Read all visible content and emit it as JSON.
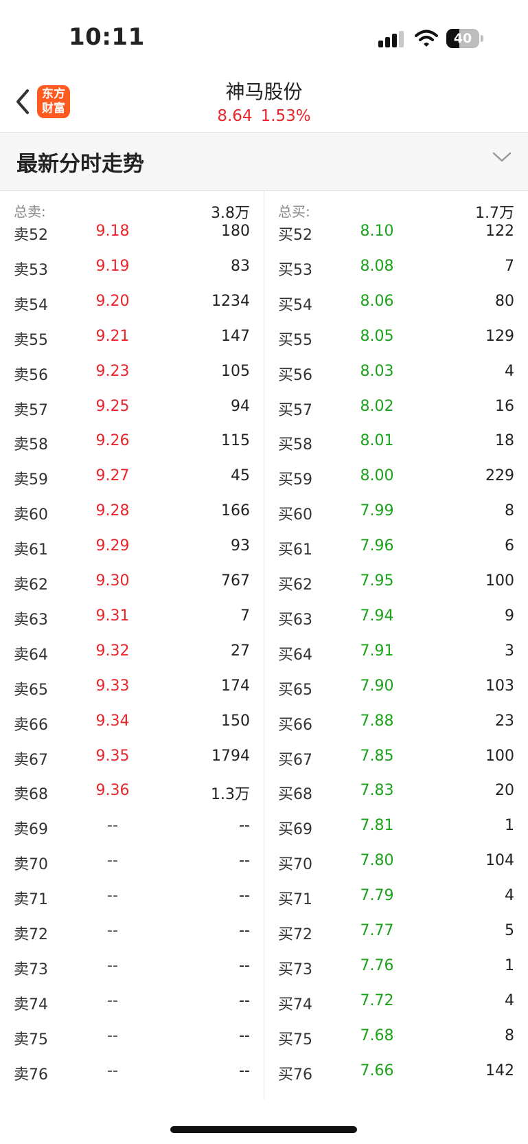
{
  "status_bar": {
    "time": "10:11",
    "battery": "40",
    "battery_level": 0.4
  },
  "header": {
    "logo_line1": "东方",
    "logo_line2": "财富",
    "stock_name": "神马股份",
    "price": "8.64",
    "change_pct": "1.53%"
  },
  "section": {
    "title": "最新分时走势"
  },
  "sell": {
    "total_label": "总卖:",
    "total_value": "3.8万",
    "levels": [
      {
        "label": "卖52",
        "price": "9.18",
        "volume": "180"
      },
      {
        "label": "卖53",
        "price": "9.19",
        "volume": "83"
      },
      {
        "label": "卖54",
        "price": "9.20",
        "volume": "1234"
      },
      {
        "label": "卖55",
        "price": "9.21",
        "volume": "147"
      },
      {
        "label": "卖56",
        "price": "9.23",
        "volume": "105"
      },
      {
        "label": "卖57",
        "price": "9.25",
        "volume": "94"
      },
      {
        "label": "卖58",
        "price": "9.26",
        "volume": "115"
      },
      {
        "label": "卖59",
        "price": "9.27",
        "volume": "45"
      },
      {
        "label": "卖60",
        "price": "9.28",
        "volume": "166"
      },
      {
        "label": "卖61",
        "price": "9.29",
        "volume": "93"
      },
      {
        "label": "卖62",
        "price": "9.30",
        "volume": "767"
      },
      {
        "label": "卖63",
        "price": "9.31",
        "volume": "7"
      },
      {
        "label": "卖64",
        "price": "9.32",
        "volume": "27"
      },
      {
        "label": "卖65",
        "price": "9.33",
        "volume": "174"
      },
      {
        "label": "卖66",
        "price": "9.34",
        "volume": "150"
      },
      {
        "label": "卖67",
        "price": "9.35",
        "volume": "1794"
      },
      {
        "label": "卖68",
        "price": "9.36",
        "volume": "1.3万"
      },
      {
        "label": "卖69",
        "price": "--",
        "volume": "--"
      },
      {
        "label": "卖70",
        "price": "--",
        "volume": "--"
      },
      {
        "label": "卖71",
        "price": "--",
        "volume": "--"
      },
      {
        "label": "卖72",
        "price": "--",
        "volume": "--"
      },
      {
        "label": "卖73",
        "price": "--",
        "volume": "--"
      },
      {
        "label": "卖74",
        "price": "--",
        "volume": "--"
      },
      {
        "label": "卖75",
        "price": "--",
        "volume": "--"
      },
      {
        "label": "卖76",
        "price": "--",
        "volume": "--"
      }
    ]
  },
  "buy": {
    "total_label": "总买:",
    "total_value": "1.7万",
    "levels": [
      {
        "label": "买52",
        "price": "8.10",
        "volume": "122"
      },
      {
        "label": "买53",
        "price": "8.08",
        "volume": "7"
      },
      {
        "label": "买54",
        "price": "8.06",
        "volume": "80"
      },
      {
        "label": "买55",
        "price": "8.05",
        "volume": "129"
      },
      {
        "label": "买56",
        "price": "8.03",
        "volume": "4"
      },
      {
        "label": "买57",
        "price": "8.02",
        "volume": "16"
      },
      {
        "label": "买58",
        "price": "8.01",
        "volume": "18"
      },
      {
        "label": "买59",
        "price": "8.00",
        "volume": "229"
      },
      {
        "label": "买60",
        "price": "7.99",
        "volume": "8"
      },
      {
        "label": "买61",
        "price": "7.96",
        "volume": "6"
      },
      {
        "label": "买62",
        "price": "7.95",
        "volume": "100"
      },
      {
        "label": "买63",
        "price": "7.94",
        "volume": "9"
      },
      {
        "label": "买64",
        "price": "7.91",
        "volume": "3"
      },
      {
        "label": "买65",
        "price": "7.90",
        "volume": "103"
      },
      {
        "label": "买66",
        "price": "7.88",
        "volume": "23"
      },
      {
        "label": "买67",
        "price": "7.85",
        "volume": "100"
      },
      {
        "label": "买68",
        "price": "7.83",
        "volume": "20"
      },
      {
        "label": "买69",
        "price": "7.81",
        "volume": "1"
      },
      {
        "label": "买70",
        "price": "7.80",
        "volume": "104"
      },
      {
        "label": "买71",
        "price": "7.79",
        "volume": "4"
      },
      {
        "label": "买72",
        "price": "7.77",
        "volume": "5"
      },
      {
        "label": "买73",
        "price": "7.76",
        "volume": "1"
      },
      {
        "label": "买74",
        "price": "7.72",
        "volume": "4"
      },
      {
        "label": "买75",
        "price": "7.68",
        "volume": "8"
      },
      {
        "label": "买76",
        "price": "7.66",
        "volume": "142"
      }
    ]
  },
  "colors": {
    "up": "#e8262c",
    "down": "#1aa31a",
    "brand": "#ff5a1f"
  }
}
